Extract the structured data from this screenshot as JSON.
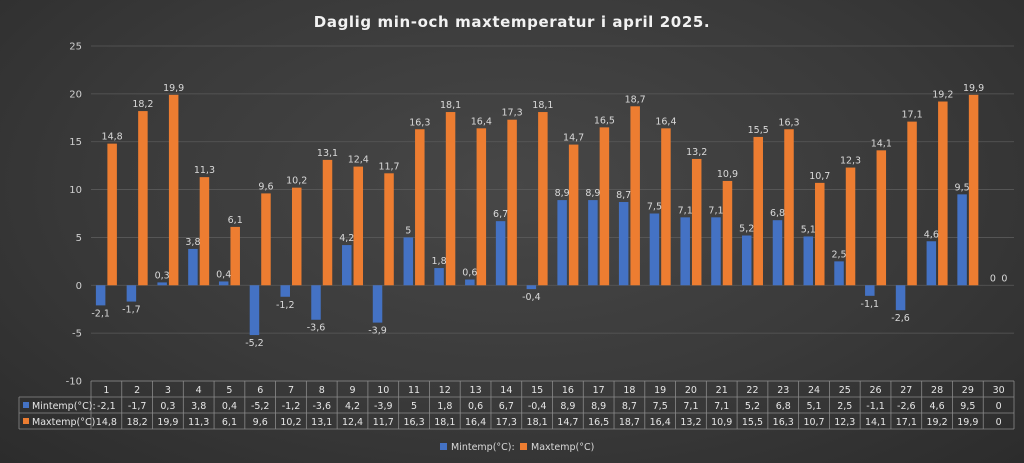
{
  "chart_data": {
    "type": "bar",
    "title": "Daglig min-och maxtemperatur i april 2025.",
    "categories": [
      "1",
      "2",
      "3",
      "4",
      "5",
      "6",
      "7",
      "8",
      "9",
      "10",
      "11",
      "12",
      "13",
      "14",
      "15",
      "16",
      "17",
      "18",
      "19",
      "20",
      "21",
      "22",
      "23",
      "24",
      "25",
      "26",
      "27",
      "28",
      "29",
      "30"
    ],
    "series": [
      {
        "name": "Mintemp(°C):",
        "color": "#4472c4",
        "values": [
          -2.1,
          -1.7,
          0.3,
          3.8,
          0.4,
          -5.2,
          -1.2,
          -3.6,
          4.2,
          -3.9,
          5,
          1.8,
          0.6,
          6.7,
          -0.4,
          8.9,
          8.9,
          8.7,
          7.5,
          7.1,
          7.1,
          5.2,
          6.8,
          5.1,
          2.5,
          -1.1,
          -2.6,
          4.6,
          9.5,
          0
        ],
        "labels": [
          "-2,1",
          "-1,7",
          "0,3",
          "3,8",
          "0,4",
          "-5,2",
          "-1,2",
          "-3,6",
          "4,2",
          "-3,9",
          "5",
          "1,8",
          "0,6",
          "6,7",
          "-0,4",
          "8,9",
          "8,9",
          "8,7",
          "7,5",
          "7,1",
          "7,1",
          "5,2",
          "6,8",
          "5,1",
          "2,5",
          "-1,1",
          "-2,6",
          "4,6",
          "9,5",
          "0"
        ]
      },
      {
        "name": "Maxtemp(°C)",
        "color": "#ed7d31",
        "values": [
          14.8,
          18.2,
          19.9,
          11.3,
          6.1,
          9.6,
          10.2,
          13.1,
          12.4,
          11.7,
          16.3,
          18.1,
          16.4,
          17.3,
          18.1,
          14.7,
          16.5,
          18.7,
          16.4,
          13.2,
          10.9,
          15.5,
          16.3,
          10.7,
          12.3,
          14.1,
          17.1,
          19.2,
          19.9,
          0
        ],
        "labels": [
          "14,8",
          "18,2",
          "19,9",
          "11,3",
          "6,1",
          "9,6",
          "10,2",
          "13,1",
          "12,4",
          "11,7",
          "16,3",
          "18,1",
          "16,4",
          "17,3",
          "18,1",
          "14,7",
          "16,5",
          "18,7",
          "16,4",
          "13,2",
          "10,9",
          "15,5",
          "16,3",
          "10,7",
          "12,3",
          "14,1",
          "17,1",
          "19,2",
          "19,9",
          "0"
        ]
      }
    ],
    "ylim": [
      -10,
      25
    ],
    "yticks": [
      "-10",
      "-5",
      "0",
      "5",
      "10",
      "15",
      "20",
      "25"
    ],
    "ytick_values": [
      -10,
      -5,
      0,
      5,
      10,
      15,
      20,
      25
    ],
    "grid": true,
    "legend": "bottom",
    "data_table": true
  }
}
